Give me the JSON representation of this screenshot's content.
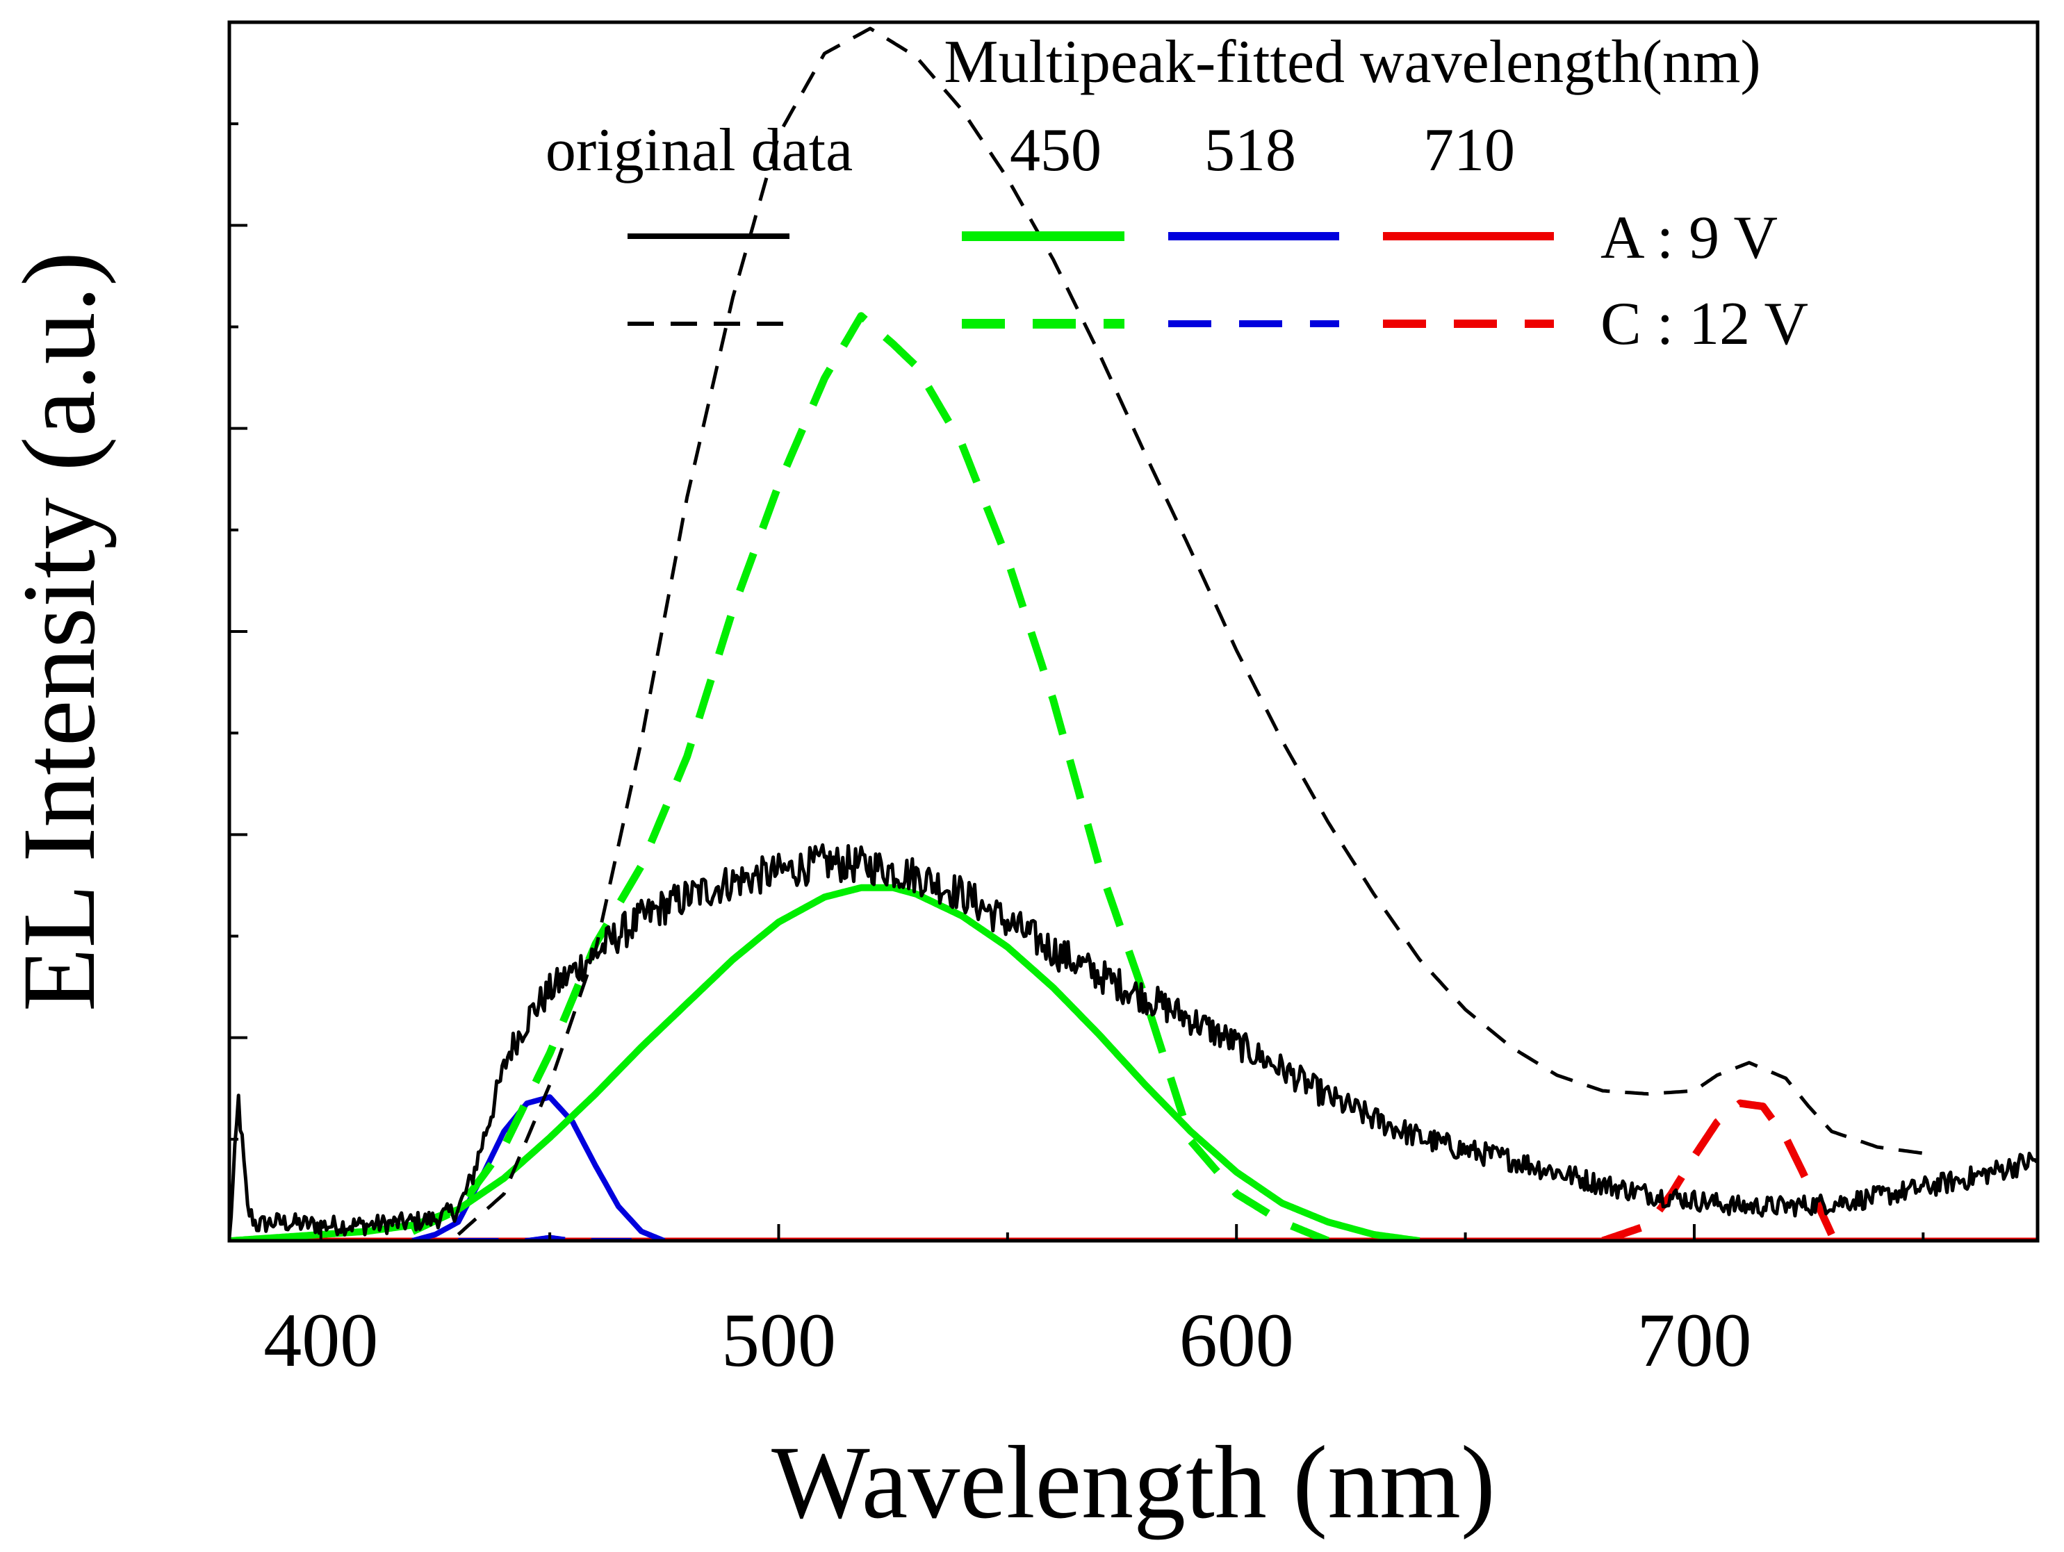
{
  "chart_data": {
    "type": "line",
    "title": "",
    "xlabel": "Wavelength (nm)",
    "ylabel": "EL Intensity (a.u.)",
    "xlim": [
      380,
      775
    ],
    "ylim": [
      0,
      3.9
    ],
    "x_ticks": [
      400,
      500,
      600,
      700
    ],
    "y_tick_count": 6,
    "y_minor_tick_count": 6,
    "grid": false,
    "legend": {
      "placement": "top",
      "title": "Multipeak-fitted wavelength(nm)",
      "column_headers": [
        "original data",
        "450",
        "518",
        "710"
      ],
      "row_labels": [
        "A : 9 V",
        "C : 12 V"
      ]
    },
    "colors": {
      "original": "#000000",
      "fit_450": "#00ee00",
      "fit_518": "#0000dd",
      "fit_710": "#ee0000"
    },
    "series": [
      {
        "name": "A : 9 V original data",
        "key": "A_original",
        "color_key": "original",
        "style": "solid",
        "noisy": true,
        "x": [
          380,
          382,
          384,
          386,
          390,
          400,
          410,
          420,
          425,
          430,
          433,
          437,
          441,
          446,
          450,
          455,
          460,
          465,
          470,
          475,
          480,
          490,
          500,
          510,
          520,
          530,
          540,
          550,
          560,
          570,
          580,
          590,
          600,
          610,
          620,
          630,
          640,
          650,
          660,
          670,
          680,
          690,
          700,
          710,
          720,
          730,
          740,
          750,
          760,
          770,
          775
        ],
        "y": [
          0.0,
          0.45,
          0.1,
          0.05,
          0.06,
          0.05,
          0.05,
          0.06,
          0.07,
          0.1,
          0.2,
          0.4,
          0.6,
          0.73,
          0.8,
          0.86,
          0.92,
          0.98,
          1.03,
          1.07,
          1.1,
          1.15,
          1.18,
          1.21,
          1.2,
          1.17,
          1.11,
          1.02,
          0.93,
          0.85,
          0.78,
          0.71,
          0.63,
          0.55,
          0.46,
          0.39,
          0.33,
          0.29,
          0.26,
          0.22,
          0.18,
          0.15,
          0.13,
          0.11,
          0.11,
          0.12,
          0.14,
          0.17,
          0.2,
          0.24,
          0.26
        ]
      },
      {
        "name": "C : 12 V original data",
        "key": "C_original",
        "color_key": "original",
        "style": "dash",
        "x": [
          430,
          440,
          450,
          460,
          470,
          480,
          490,
          500,
          510,
          520,
          530,
          540,
          550,
          560,
          570,
          580,
          590,
          600,
          610,
          620,
          630,
          640,
          650,
          660,
          670,
          680,
          690,
          700,
          705,
          712,
          720,
          725,
          730,
          740,
          750
        ],
        "y": [
          0.02,
          0.15,
          0.5,
          0.93,
          1.6,
          2.38,
          3.02,
          3.54,
          3.8,
          3.88,
          3.79,
          3.62,
          3.4,
          3.14,
          2.84,
          2.52,
          2.21,
          1.89,
          1.6,
          1.34,
          1.11,
          0.9,
          0.74,
          0.62,
          0.53,
          0.48,
          0.47,
          0.48,
          0.53,
          0.57,
          0.52,
          0.43,
          0.35,
          0.3,
          0.28
        ]
      },
      {
        "name": "A : 9 V fit 450 nm",
        "key": "A_fit450",
        "color_key": "fit_450",
        "style": "solid",
        "x": [
          380,
          410,
          420,
          430,
          440,
          450,
          460,
          470,
          480,
          490,
          500,
          510,
          518,
          525,
          530,
          540,
          550,
          560,
          570,
          580,
          590,
          600,
          610,
          620,
          630,
          640
        ],
        "y": [
          0.0,
          0.03,
          0.05,
          0.1,
          0.2,
          0.33,
          0.47,
          0.62,
          0.76,
          0.9,
          1.02,
          1.1,
          1.13,
          1.13,
          1.11,
          1.04,
          0.94,
          0.81,
          0.66,
          0.5,
          0.35,
          0.22,
          0.12,
          0.06,
          0.02,
          0.0
        ]
      },
      {
        "name": "C : 12 V fit 450 nm",
        "key": "C_fit450",
        "color_key": "fit_450",
        "style": "dash",
        "x": [
          420,
          430,
          440,
          450,
          460,
          470,
          480,
          490,
          500,
          510,
          518,
          525,
          530,
          540,
          550,
          560,
          570,
          580,
          590,
          600,
          610,
          620
        ],
        "y": [
          0.03,
          0.1,
          0.3,
          0.6,
          0.95,
          1.2,
          1.55,
          2.02,
          2.42,
          2.76,
          2.96,
          2.87,
          2.8,
          2.55,
          2.18,
          1.73,
          1.2,
          0.78,
          0.32,
          0.15,
          0.06,
          0.0
        ]
      },
      {
        "name": "A : 9 V fit 518 nm",
        "key": "A_fit518",
        "color_key": "fit_518",
        "style": "solid",
        "x": [
          420,
          425,
          430,
          435,
          440,
          445,
          450,
          455,
          460,
          465,
          470,
          475
        ],
        "y": [
          0.0,
          0.02,
          0.06,
          0.2,
          0.35,
          0.44,
          0.46,
          0.38,
          0.24,
          0.11,
          0.03,
          0.0
        ]
      },
      {
        "name": "C : 12 V fit 518 nm",
        "key": "C_fit518",
        "color_key": "fit_518",
        "style": "dash",
        "x": [
          430,
          445,
          450,
          455,
          470
        ],
        "y": [
          0.0,
          0.0,
          0.01,
          0.0,
          0.0
        ]
      },
      {
        "name": "A : 9 V fit 710 nm",
        "key": "A_fit710",
        "color_key": "fit_710",
        "style": "solid",
        "x": [
          380,
          775
        ],
        "y": [
          0.0,
          0.0
        ]
      },
      {
        "name": "C : 12 V fit 710 nm",
        "key": "C_fit710",
        "color_key": "fit_710",
        "style": "dash",
        "x": [
          680,
          690,
          695,
          700,
          705,
          710,
          715,
          720,
          725,
          730
        ],
        "y": [
          0.0,
          0.05,
          0.15,
          0.27,
          0.38,
          0.44,
          0.43,
          0.33,
          0.18,
          0.02
        ]
      }
    ]
  }
}
